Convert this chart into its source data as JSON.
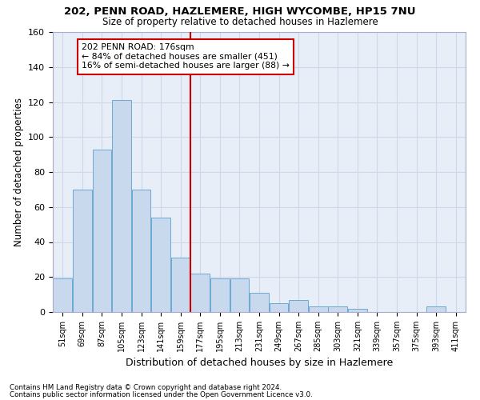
{
  "title1": "202, PENN ROAD, HAZLEMERE, HIGH WYCOMBE, HP15 7NU",
  "title2": "Size of property relative to detached houses in Hazlemere",
  "xlabel": "Distribution of detached houses by size in Hazlemere",
  "ylabel": "Number of detached properties",
  "footnote1": "Contains HM Land Registry data © Crown copyright and database right 2024.",
  "footnote2": "Contains public sector information licensed under the Open Government Licence v3.0.",
  "categories": [
    "51sqm",
    "69sqm",
    "87sqm",
    "105sqm",
    "123sqm",
    "141sqm",
    "159sqm",
    "177sqm",
    "195sqm",
    "213sqm",
    "231sqm",
    "249sqm",
    "267sqm",
    "285sqm",
    "303sqm",
    "321sqm",
    "339sqm",
    "357sqm",
    "375sqm",
    "393sqm",
    "411sqm"
  ],
  "values": [
    19,
    70,
    93,
    121,
    70,
    54,
    31,
    22,
    19,
    19,
    11,
    5,
    7,
    3,
    3,
    2,
    0,
    0,
    0,
    3,
    0
  ],
  "bar_color": "#c8d9ee",
  "bar_edge_color": "#6aaad4",
  "grid_color": "#d0d8e8",
  "vline_color": "#cc0000",
  "annotation_title": "202 PENN ROAD: 176sqm",
  "annotation_line1": "← 84% of detached houses are smaller (451)",
  "annotation_line2": "16% of semi-detached houses are larger (88) →",
  "annotation_box_facecolor": "#ffffff",
  "annotation_box_edgecolor": "#cc0000",
  "ylim": [
    0,
    160
  ],
  "yticks": [
    0,
    20,
    40,
    60,
    80,
    100,
    120,
    140,
    160
  ],
  "fig_background": "#ffffff",
  "axes_background": "#e8eef8"
}
